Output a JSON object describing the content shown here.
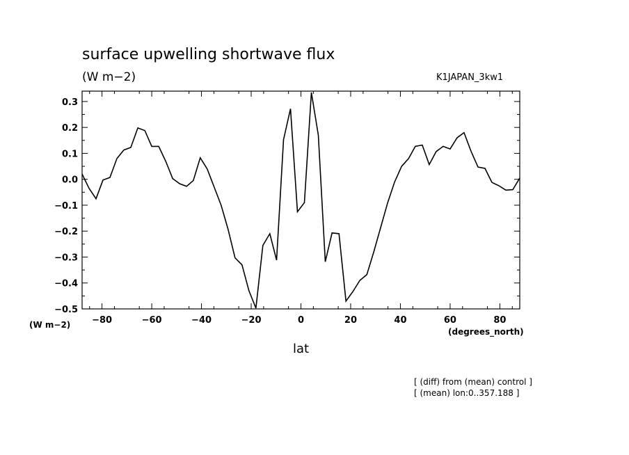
{
  "chart_data": {
    "type": "line",
    "title": "surface upwelling shortwave flux",
    "units": "(W m−2)",
    "run_label": "K1JAPAN_3kw1",
    "ylabel": "(W m−2)",
    "xlabel": "lat",
    "xunit": "(degrees_north)",
    "notes": [
      "[ (diff) from (mean) control ]",
      "[ (mean) lon:0..357.188 ]"
    ],
    "xlim": [
      -88,
      88
    ],
    "ylim": [
      -0.5,
      0.34
    ],
    "xticks": [
      -80,
      -60,
      -40,
      -20,
      0,
      20,
      40,
      60,
      80
    ],
    "xtick_labels": [
      "−80",
      "−60",
      "−40",
      "−20",
      "0",
      "20",
      "40",
      "60",
      "80"
    ],
    "yticks": [
      0.3,
      0.2,
      0.1,
      0.0,
      -0.1,
      -0.2,
      -0.3,
      -0.4,
      -0.5
    ],
    "ytick_labels": [
      "0.3",
      "0.2",
      "0.1",
      "0.0",
      "−0.1",
      "−0.2",
      "−0.3",
      "−0.4",
      "−0.5"
    ],
    "grid": false,
    "series": [
      {
        "x": [
          -88,
          -85.2,
          -82.4,
          -79.6,
          -76.8,
          -74.0,
          -71.2,
          -68.4,
          -65.6,
          -62.8,
          -60.0,
          -57.2,
          -54.4,
          -51.6,
          -48.8,
          -46.0,
          -43.3,
          -40.5,
          -37.7,
          -34.9,
          -32.1,
          -29.3,
          -26.5,
          -23.7,
          -20.9,
          -18.1,
          -15.3,
          -12.5,
          -9.8,
          -7.0,
          -4.2,
          -1.4,
          1.4,
          4.2,
          7.0,
          9.8,
          12.5,
          15.3,
          18.1,
          20.9,
          23.7,
          26.5,
          29.3,
          32.1,
          34.9,
          37.7,
          40.5,
          43.3,
          46.0,
          48.8,
          51.6,
          54.4,
          57.2,
          60.0,
          62.8,
          65.6,
          68.4,
          71.2,
          74.0,
          76.8,
          79.6,
          82.4,
          85.2,
          88
        ],
        "y": [
          0.02,
          -0.035,
          -0.075,
          -0.003,
          0.007,
          0.08,
          0.113,
          0.123,
          0.198,
          0.188,
          0.127,
          0.127,
          0.07,
          0.003,
          -0.017,
          -0.027,
          -0.005,
          0.083,
          0.04,
          -0.03,
          -0.1,
          -0.193,
          -0.303,
          -0.33,
          -0.43,
          -0.497,
          -0.255,
          -0.21,
          -0.312,
          0.153,
          0.272,
          -0.125,
          -0.09,
          0.335,
          0.17,
          -0.318,
          -0.207,
          -0.21,
          -0.47,
          -0.433,
          -0.39,
          -0.368,
          -0.28,
          -0.185,
          -0.09,
          -0.01,
          0.05,
          0.08,
          0.127,
          0.132,
          0.057,
          0.107,
          0.127,
          0.117,
          0.16,
          0.18,
          0.108,
          0.047,
          0.042,
          -0.012,
          -0.025,
          -0.042,
          -0.04,
          0.005
        ]
      }
    ]
  }
}
